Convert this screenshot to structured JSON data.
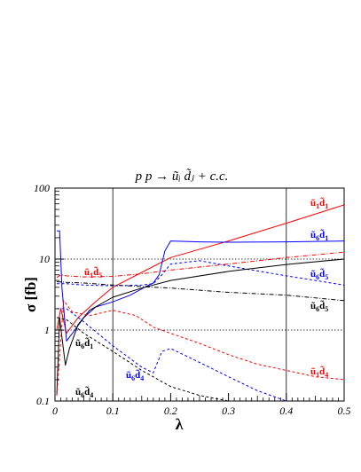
{
  "chart_data": {
    "type": "line",
    "title": "p p → ũᵢ d̃ⱼ + c.c.",
    "xlabel": "λ",
    "ylabel": "σ [fb]",
    "xlim": [
      0,
      0.5
    ],
    "ylim": [
      0.1,
      100
    ],
    "yscale": "log",
    "x_ticks": [
      "0",
      "0.1",
      "0.2",
      "0.3",
      "0.4",
      "0.5"
    ],
    "y_ticks": [
      "0.1",
      "1",
      "10",
      "100"
    ],
    "grid": "dotted horizontal at 1 and 10; solid vertical at 0.1 and 0.4",
    "reference_lines": {
      "x": [
        0.1,
        0.4
      ],
      "y": [
        1,
        10
      ]
    },
    "series": [
      {
        "name": "ũ₁d̃₁",
        "color": "#ff0000",
        "style": "solid",
        "x": [
          0.003,
          0.01,
          0.02,
          0.04,
          0.07,
          0.1,
          0.15,
          0.2,
          0.3,
          0.4,
          0.5
        ],
        "y": [
          1.0,
          2.0,
          0.9,
          1.5,
          2.5,
          4.0,
          6.5,
          10.5,
          18,
          32,
          58
        ]
      },
      {
        "name": "ũ₆d̃₁",
        "color": "#0000ff",
        "style": "solid",
        "x": [
          0.003,
          0.008,
          0.012,
          0.02,
          0.03,
          0.05,
          0.07,
          0.1,
          0.13,
          0.16,
          0.17,
          0.18,
          0.19,
          0.2,
          0.25,
          0.3,
          0.4,
          0.5
        ],
        "y": [
          25,
          25,
          4,
          0.7,
          0.9,
          1.5,
          2.1,
          2.5,
          3.1,
          4.2,
          4.6,
          6,
          13,
          18,
          17.5,
          17.3,
          17.5,
          18
        ]
      },
      {
        "name": "ũ₁d̃₅",
        "color": "#ff0000",
        "style": "dashdot",
        "x": [
          0.003,
          0.01,
          0.02,
          0.05,
          0.1,
          0.15,
          0.2,
          0.3,
          0.4,
          0.5
        ],
        "y": [
          5.5,
          6,
          5.8,
          5.6,
          5.7,
          6.2,
          7,
          8.5,
          10.5,
          12.5
        ]
      },
      {
        "name": "ũ₆d̃₅",
        "color": "#0000ff",
        "style": "dashed",
        "x": [
          0.003,
          0.02,
          0.05,
          0.1,
          0.15,
          0.17,
          0.185,
          0.2,
          0.25,
          0.3,
          0.4,
          0.5
        ],
        "y": [
          4.5,
          4.5,
          4.3,
          4.2,
          4.3,
          4.5,
          6,
          8.5,
          9.5,
          8,
          5.8,
          4.3
        ]
      },
      {
        "name": "ũ₆d̃₅",
        "color": "#000000",
        "style": "dashdot",
        "x": [
          0.003,
          0.02,
          0.05,
          0.1,
          0.15,
          0.2,
          0.3,
          0.4,
          0.5
        ],
        "y": [
          4.8,
          4.7,
          4.6,
          4.3,
          4.1,
          3.9,
          3.4,
          3.1,
          2.6
        ]
      },
      {
        "name": "ũ₆d̃₁",
        "color": "#000000",
        "style": "solid",
        "x": [
          0.003,
          0.008,
          0.012,
          0.018,
          0.025,
          0.04,
          0.06,
          0.1,
          0.15,
          0.2,
          0.3,
          0.4,
          0.5
        ],
        "y": [
          0.12,
          1.5,
          0.8,
          0.32,
          0.55,
          1.2,
          1.9,
          2.9,
          3.9,
          5,
          6.7,
          8.4,
          10
        ]
      },
      {
        "name": "ũ₁d̃₄",
        "color": "#ff0000",
        "style": "dashed",
        "x": [
          0.003,
          0.015,
          0.03,
          0.06,
          0.1,
          0.14,
          0.17,
          0.2,
          0.25,
          0.3,
          0.35,
          0.4,
          0.45,
          0.5
        ],
        "y": [
          0.12,
          2.6,
          1.8,
          1.6,
          1.9,
          1.6,
          1.1,
          0.9,
          0.65,
          0.45,
          0.33,
          0.27,
          0.22,
          0.2
        ]
      },
      {
        "name": "ũ₆d̃₄",
        "color": "#0000ff",
        "style": "dashed",
        "x": [
          0.003,
          0.02,
          0.05,
          0.1,
          0.15,
          0.17,
          0.185,
          0.2,
          0.25,
          0.3,
          0.35,
          0.4
        ],
        "y": [
          2.0,
          2.0,
          1.3,
          0.6,
          0.3,
          0.25,
          0.5,
          0.55,
          0.35,
          0.22,
          0.14,
          0.1
        ]
      },
      {
        "name": "ũ₆d̃₄",
        "color": "#000000",
        "style": "dashed",
        "x": [
          0.003,
          0.02,
          0.05,
          0.1,
          0.15,
          0.2,
          0.25,
          0.3
        ],
        "y": [
          1.5,
          1.4,
          0.9,
          0.5,
          0.27,
          0.16,
          0.12,
          0.1
        ]
      }
    ],
    "labels": [
      {
        "base": "ũ",
        "sub1": "1",
        "mid": "d̃",
        "sub2": "1",
        "color": "#ff0000"
      },
      {
        "base": "ũ",
        "sub1": "6",
        "mid": "d̃",
        "sub2": "1",
        "color": "#0000ff"
      },
      {
        "base": "ũ",
        "sub1": "1",
        "mid": "d̃",
        "sub2": "5",
        "color": "#ff0000"
      },
      {
        "base": "ũ",
        "sub1": "6",
        "mid": "d̃",
        "sub2": "5",
        "color": "#0000ff"
      },
      {
        "base": "ũ",
        "sub1": "6",
        "mid": "d̃",
        "sub2": "5",
        "color": "#000000"
      },
      {
        "base": "ũ",
        "sub1": "6",
        "mid": "d̃",
        "sub2": "1",
        "color": "#000000"
      },
      {
        "base": "ũ",
        "sub1": "6",
        "mid": "d̃",
        "sub2": "4",
        "color": "#0000ff"
      },
      {
        "base": "ũ",
        "sub1": "6",
        "mid": "d̃",
        "sub2": "4",
        "color": "#000000"
      },
      {
        "base": "ũ",
        "sub1": "1",
        "mid": "d̃",
        "sub2": "4",
        "color": "#ff0000"
      }
    ]
  }
}
